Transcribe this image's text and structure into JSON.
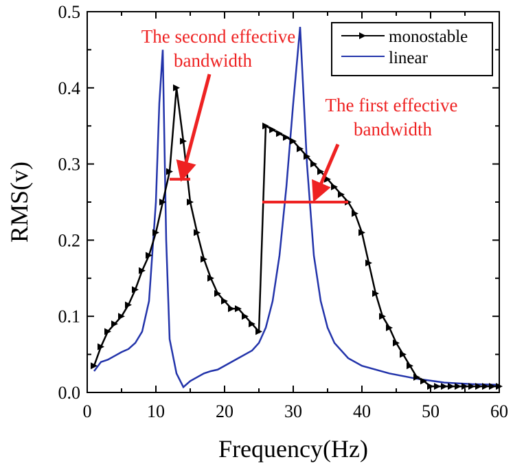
{
  "chart_data": {
    "type": "line",
    "title": "",
    "xlabel": "Frequency(Hz)",
    "ylabel": "RMS(v)",
    "xlim": [
      0,
      60
    ],
    "ylim": [
      0,
      0.5
    ],
    "xticks": [
      "0",
      "10",
      "20",
      "30",
      "40",
      "50",
      "60"
    ],
    "yticks": [
      "0.0",
      "0.1",
      "0.2",
      "0.3",
      "0.4",
      "0.5"
    ],
    "legend": {
      "placement": "top-right",
      "entries": [
        "monostable",
        "linear"
      ]
    },
    "colors": {
      "monostable": "#000000",
      "linear": "#2233aa",
      "annotation": "#ee2222"
    },
    "series": [
      {
        "name": "monostable",
        "x": [
          1,
          2,
          3,
          4,
          5,
          6,
          7,
          8,
          9,
          10,
          11,
          12,
          13,
          14,
          15,
          16,
          17,
          18,
          19,
          20,
          21,
          22,
          23,
          24,
          25,
          26,
          27,
          28,
          29,
          30,
          31,
          32,
          33,
          34,
          35,
          36,
          37,
          38,
          39,
          40,
          41,
          42,
          43,
          44,
          45,
          46,
          47,
          48,
          49,
          50,
          51,
          52,
          53,
          54,
          55,
          56,
          57,
          58,
          59,
          60
        ],
        "y": [
          0.035,
          0.06,
          0.08,
          0.09,
          0.1,
          0.115,
          0.135,
          0.16,
          0.18,
          0.21,
          0.25,
          0.29,
          0.4,
          0.33,
          0.25,
          0.21,
          0.175,
          0.15,
          0.13,
          0.12,
          0.11,
          0.11,
          0.1,
          0.09,
          0.08,
          0.35,
          0.345,
          0.34,
          0.335,
          0.33,
          0.32,
          0.31,
          0.3,
          0.29,
          0.28,
          0.27,
          0.26,
          0.25,
          0.235,
          0.21,
          0.17,
          0.13,
          0.1,
          0.085,
          0.065,
          0.05,
          0.035,
          0.02,
          0.015,
          0.008,
          0.008,
          0.008,
          0.008,
          0.008,
          0.008,
          0.008,
          0.008,
          0.008,
          0.008,
          0.008
        ]
      },
      {
        "name": "linear",
        "x": [
          1,
          2,
          3,
          4,
          5,
          6,
          7,
          8,
          9,
          10,
          10.5,
          11,
          11.5,
          12,
          13,
          14,
          15,
          16,
          17,
          18,
          19,
          20,
          22,
          24,
          25,
          26,
          27,
          28,
          29,
          30,
          31,
          32,
          33,
          34,
          35,
          36,
          38,
          40,
          44,
          48,
          52,
          56,
          60
        ],
        "y": [
          0.028,
          0.04,
          0.043,
          0.048,
          0.053,
          0.057,
          0.065,
          0.08,
          0.12,
          0.25,
          0.38,
          0.45,
          0.2,
          0.07,
          0.025,
          0.007,
          0.015,
          0.02,
          0.025,
          0.028,
          0.03,
          0.035,
          0.045,
          0.055,
          0.065,
          0.085,
          0.12,
          0.18,
          0.27,
          0.38,
          0.48,
          0.3,
          0.18,
          0.12,
          0.085,
          0.065,
          0.045,
          0.035,
          0.025,
          0.018,
          0.013,
          0.011,
          0.01
        ]
      }
    ],
    "annotations": [
      {
        "text_lines": [
          "The second effective",
          "bandwidth"
        ],
        "band": {
          "y": 0.28,
          "x": [
            12,
            15
          ]
        }
      },
      {
        "text_lines": [
          "The first effective",
          "bandwidth"
        ],
        "band": {
          "y": 0.25,
          "x": [
            25.5,
            38
          ]
        }
      }
    ]
  }
}
